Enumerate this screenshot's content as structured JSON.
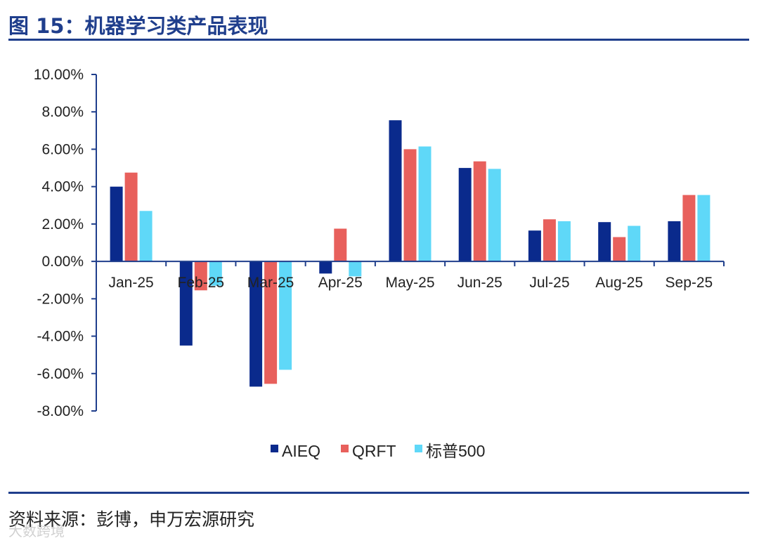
{
  "header": {
    "title": "图 15：机器学习类产品表现"
  },
  "footer": {
    "source": "资料来源：彭博，申万宏源研究",
    "watermark": "大数跨境"
  },
  "chart_data": {
    "type": "bar",
    "title": "",
    "xlabel": "",
    "ylabel": "",
    "categories": [
      "Jan-25",
      "Feb-25",
      "Mar-25",
      "Apr-25",
      "May-25",
      "Jun-25",
      "Jul-25",
      "Aug-25",
      "Sep-25"
    ],
    "ylim": [
      -8,
      10
    ],
    "yticks": [
      10,
      8,
      6,
      4,
      2,
      0,
      -2,
      -4,
      -6,
      -8
    ],
    "ytick_labels": [
      "10.00%",
      "8.00%",
      "6.00%",
      "4.00%",
      "2.00%",
      "0.00%",
      "-2.00%",
      "-4.00%",
      "-6.00%",
      "-8.00%"
    ],
    "value_unit": "%",
    "grid": false,
    "legend_position": "bottom",
    "series": [
      {
        "name": "AIEQ",
        "color": "#0a2a8c",
        "values": [
          4.0,
          -4.5,
          -6.7,
          -0.65,
          7.55,
          5.0,
          1.65,
          2.1,
          2.15
        ]
      },
      {
        "name": "QRFT",
        "color": "#e8605c",
        "values": [
          4.75,
          -1.55,
          -6.55,
          1.75,
          6.0,
          5.35,
          2.25,
          1.3,
          3.55
        ]
      },
      {
        "name": "标普500",
        "color": "#5fd8f8",
        "values": [
          2.7,
          -1.3,
          -5.8,
          -0.8,
          6.15,
          4.95,
          2.15,
          1.9,
          3.55
        ]
      }
    ]
  }
}
